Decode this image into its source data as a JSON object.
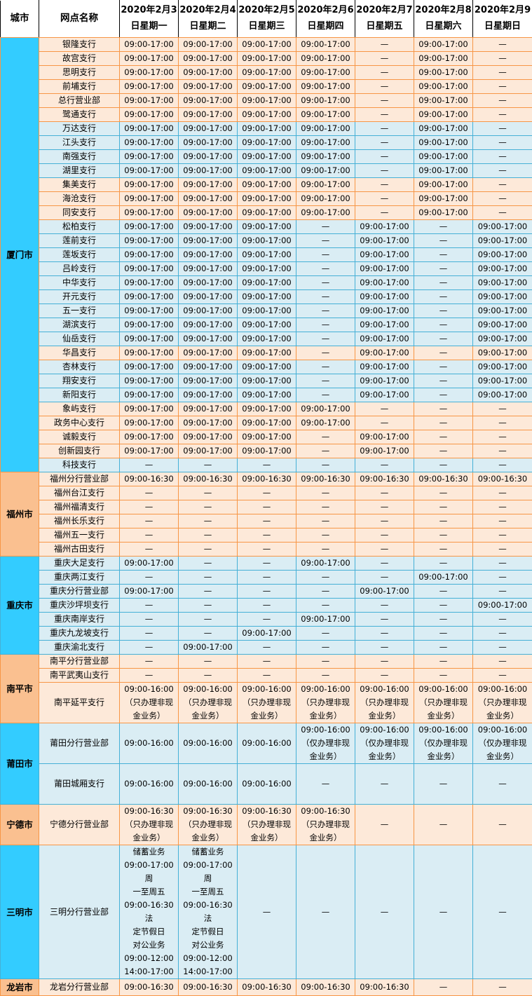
{
  "colors": {
    "city_cyan": "#33CCFF",
    "city_orange": "#FAC090",
    "row_peach": "#FDE9D9",
    "row_blue": "#DAEDF4",
    "border_orange": "#F79646",
    "border_teal": "#45B0D6",
    "header_bg": "#FFFFFF",
    "header_border": "#000000",
    "text": "#000000"
  },
  "header": {
    "city": "城市",
    "branch": "网点名称",
    "dates": [
      {
        "line1": "2020年2月3",
        "line2": "日星期一"
      },
      {
        "line1": "2020年2月4",
        "line2": "日星期二"
      },
      {
        "line1": "2020年2月5",
        "line2": "日星期三"
      },
      {
        "line1": "2020年2月6",
        "line2": "日星期四"
      },
      {
        "line1": "2020年2月7",
        "line2": "日星期五"
      },
      {
        "line1": "2020年2月8",
        "line2": "日星期六"
      },
      {
        "line1": "2020年2月9",
        "line2": "日星期日"
      }
    ]
  },
  "city_groups": [
    {
      "city": "厦门市",
      "city_color": "cyan",
      "rows": [
        {
          "branch": "银隆支行",
          "bg": "peach",
          "cells": [
            "09:00-17:00",
            "09:00-17:00",
            "09:00-17:00",
            "09:00-17:00",
            "—",
            "09:00-17:00",
            "—"
          ]
        },
        {
          "branch": "故宫支行",
          "bg": "peach",
          "cells": [
            "09:00-17:00",
            "09:00-17:00",
            "09:00-17:00",
            "09:00-17:00",
            "—",
            "09:00-17:00",
            "—"
          ]
        },
        {
          "branch": "思明支行",
          "bg": "peach",
          "cells": [
            "09:00-17:00",
            "09:00-17:00",
            "09:00-17:00",
            "09:00-17:00",
            "—",
            "09:00-17:00",
            "—"
          ]
        },
        {
          "branch": "前埔支行",
          "bg": "peach",
          "cells": [
            "09:00-17:00",
            "09:00-17:00",
            "09:00-17:00",
            "09:00-17:00",
            "—",
            "09:00-17:00",
            "—"
          ]
        },
        {
          "branch": "总行营业部",
          "bg": "peach",
          "cells": [
            "09:00-17:00",
            "09:00-17:00",
            "09:00-17:00",
            "09:00-17:00",
            "—",
            "09:00-17:00",
            "—"
          ]
        },
        {
          "branch": "鹭通支行",
          "bg": "peach",
          "cells": [
            "09:00-17:00",
            "09:00-17:00",
            "09:00-17:00",
            "09:00-17:00",
            "—",
            "09:00-17:00",
            "—"
          ]
        },
        {
          "branch": "万达支行",
          "bg": "blue",
          "cells": [
            "09:00-17:00",
            "09:00-17:00",
            "09:00-17:00",
            "09:00-17:00",
            "—",
            "09:00-17:00",
            "—"
          ]
        },
        {
          "branch": "江头支行",
          "bg": "blue",
          "cells": [
            "09:00-17:00",
            "09:00-17:00",
            "09:00-17:00",
            "09:00-17:00",
            "—",
            "09:00-17:00",
            "—"
          ]
        },
        {
          "branch": "南强支行",
          "bg": "blue",
          "cells": [
            "09:00-17:00",
            "09:00-17:00",
            "09:00-17:00",
            "09:00-17:00",
            "—",
            "09:00-17:00",
            "—"
          ]
        },
        {
          "branch": "湖里支行",
          "bg": "blue",
          "cells": [
            "09:00-17:00",
            "09:00-17:00",
            "09:00-17:00",
            "09:00-17:00",
            "—",
            "09:00-17:00",
            "—"
          ]
        },
        {
          "branch": "集美支行",
          "bg": "peach",
          "cells": [
            "09:00-17:00",
            "09:00-17:00",
            "09:00-17:00",
            "09:00-17:00",
            "—",
            "09:00-17:00",
            "—"
          ]
        },
        {
          "branch": "海沧支行",
          "bg": "peach",
          "cells": [
            "09:00-17:00",
            "09:00-17:00",
            "09:00-17:00",
            "09:00-17:00",
            "—",
            "09:00-17:00",
            "—"
          ]
        },
        {
          "branch": "同安支行",
          "bg": "peach",
          "cells": [
            "09:00-17:00",
            "09:00-17:00",
            "09:00-17:00",
            "09:00-17:00",
            "—",
            "09:00-17:00",
            "—"
          ]
        },
        {
          "branch": "松柏支行",
          "bg": "blue",
          "cells": [
            "09:00-17:00",
            "09:00-17:00",
            "09:00-17:00",
            "—",
            "09:00-17:00",
            "—",
            "09:00-17:00"
          ]
        },
        {
          "branch": "莲前支行",
          "bg": "blue",
          "cells": [
            "09:00-17:00",
            "09:00-17:00",
            "09:00-17:00",
            "—",
            "09:00-17:00",
            "—",
            "09:00-17:00"
          ]
        },
        {
          "branch": "莲坂支行",
          "bg": "blue",
          "cells": [
            "09:00-17:00",
            "09:00-17:00",
            "09:00-17:00",
            "—",
            "09:00-17:00",
            "—",
            "09:00-17:00"
          ]
        },
        {
          "branch": "吕岭支行",
          "bg": "blue",
          "cells": [
            "09:00-17:00",
            "09:00-17:00",
            "09:00-17:00",
            "—",
            "09:00-17:00",
            "—",
            "09:00-17:00"
          ]
        },
        {
          "branch": "中华支行",
          "bg": "blue",
          "cells": [
            "09:00-17:00",
            "09:00-17:00",
            "09:00-17:00",
            "—",
            "09:00-17:00",
            "—",
            "09:00-17:00"
          ]
        },
        {
          "branch": "开元支行",
          "bg": "blue",
          "cells": [
            "09:00-17:00",
            "09:00-17:00",
            "09:00-17:00",
            "—",
            "09:00-17:00",
            "—",
            "09:00-17:00"
          ]
        },
        {
          "branch": "五一支行",
          "bg": "blue",
          "cells": [
            "09:00-17:00",
            "09:00-17:00",
            "09:00-17:00",
            "—",
            "09:00-17:00",
            "—",
            "09:00-17:00"
          ]
        },
        {
          "branch": "湖滨支行",
          "bg": "blue",
          "cells": [
            "09:00-17:00",
            "09:00-17:00",
            "09:00-17:00",
            "—",
            "09:00-17:00",
            "—",
            "09:00-17:00"
          ]
        },
        {
          "branch": "仙岳支行",
          "bg": "blue",
          "cells": [
            "09:00-17:00",
            "09:00-17:00",
            "09:00-17:00",
            "—",
            "09:00-17:00",
            "—",
            "09:00-17:00"
          ]
        },
        {
          "branch": "华昌支行",
          "bg": "peach",
          "cells": [
            "09:00-17:00",
            "09:00-17:00",
            "09:00-17:00",
            "—",
            "09:00-17:00",
            "—",
            "09:00-17:00"
          ]
        },
        {
          "branch": "杏林支行",
          "bg": "blue",
          "cells": [
            "09:00-17:00",
            "09:00-17:00",
            "09:00-17:00",
            "—",
            "09:00-17:00",
            "—",
            "09:00-17:00"
          ]
        },
        {
          "branch": "翔安支行",
          "bg": "blue",
          "cells": [
            "09:00-17:00",
            "09:00-17:00",
            "09:00-17:00",
            "—",
            "09:00-17:00",
            "—",
            "09:00-17:00"
          ]
        },
        {
          "branch": "新阳支行",
          "bg": "blue",
          "cells": [
            "09:00-17:00",
            "09:00-17:00",
            "09:00-17:00",
            "—",
            "09:00-17:00",
            "—",
            "09:00-17:00"
          ]
        },
        {
          "branch": "象屿支行",
          "bg": "peach",
          "cells": [
            "09:00-17:00",
            "09:00-17:00",
            "09:00-17:00",
            "09:00-17:00",
            "—",
            "—",
            "—"
          ]
        },
        {
          "branch": "政务中心支行",
          "bg": "peach",
          "cells": [
            "09:00-17:00",
            "09:00-17:00",
            "09:00-17:00",
            "09:00-17:00",
            "—",
            "—",
            "—"
          ]
        },
        {
          "branch": "诚毅支行",
          "bg": "peach",
          "cells": [
            "09:00-17:00",
            "09:00-17:00",
            "09:00-17:00",
            "—",
            "09:00-17:00",
            "—",
            "—"
          ]
        },
        {
          "branch": "创新园支行",
          "bg": "peach",
          "cells": [
            "09:00-17:00",
            "09:00-17:00",
            "09:00-17:00",
            "—",
            "09:00-17:00",
            "—",
            "—"
          ]
        },
        {
          "branch": "科技支行",
          "bg": "blue",
          "cells": [
            "—",
            "—",
            "—",
            "—",
            "—",
            "—",
            "—"
          ]
        }
      ]
    },
    {
      "city": "福州市",
      "city_color": "orange",
      "rows": [
        {
          "branch": "福州分行营业部",
          "bg": "peach",
          "cells": [
            "09:00-16:30",
            "09:00-16:30",
            "09:00-16:30",
            "09:00-16:30",
            "09:00-16:30",
            "09:00-16:30",
            "09:00-16:30"
          ]
        },
        {
          "branch": "福州台江支行",
          "bg": "peach",
          "cells": [
            "—",
            "—",
            "—",
            "—",
            "—",
            "—",
            "—"
          ]
        },
        {
          "branch": "福州福清支行",
          "bg": "peach",
          "cells": [
            "—",
            "—",
            "—",
            "—",
            "—",
            "—",
            "—"
          ]
        },
        {
          "branch": "福州长乐支行",
          "bg": "peach",
          "cells": [
            "—",
            "—",
            "—",
            "—",
            "—",
            "—",
            "—"
          ]
        },
        {
          "branch": "福州五一支行",
          "bg": "peach",
          "cells": [
            "—",
            "—",
            "—",
            "—",
            "—",
            "—",
            "—"
          ]
        },
        {
          "branch": "福州古田支行",
          "bg": "peach",
          "cells": [
            "—",
            "—",
            "—",
            "—",
            "—",
            "—",
            "—"
          ]
        }
      ]
    },
    {
      "city": "重庆市",
      "city_color": "cyan",
      "rows": [
        {
          "branch": "重庆大足支行",
          "bg": "blue",
          "cells": [
            "09:00-17:00",
            "—",
            "—",
            "09:00-17:00",
            "—",
            "—",
            "—"
          ]
        },
        {
          "branch": "重庆两江支行",
          "bg": "blue",
          "cells": [
            "—",
            "—",
            "—",
            "—",
            "—",
            "09:00-17:00",
            "—"
          ]
        },
        {
          "branch": "重庆分行营业部",
          "bg": "blue",
          "cells": [
            "09:00-17:00",
            "—",
            "—",
            "—",
            "09:00-17:00",
            "—",
            "—"
          ]
        },
        {
          "branch": "重庆沙坪坝支行",
          "bg": "blue",
          "cells": [
            "—",
            "—",
            "—",
            "—",
            "—",
            "—",
            "09:00-17:00"
          ]
        },
        {
          "branch": "重庆南岸支行",
          "bg": "blue",
          "cells": [
            "—",
            "—",
            "—",
            "09:00-17:00",
            "—",
            "—",
            "—"
          ]
        },
        {
          "branch": "重庆九龙坡支行",
          "bg": "blue",
          "cells": [
            "—",
            "—",
            "09:00-17:00",
            "—",
            "—",
            "—",
            "—"
          ]
        },
        {
          "branch": "重庆渝北支行",
          "bg": "blue",
          "cells": [
            "—",
            "09:00-17:00",
            "—",
            "—",
            "—",
            "—",
            "—"
          ]
        }
      ]
    },
    {
      "city": "南平市",
      "city_color": "orange",
      "rows": [
        {
          "branch": "南平分行营业部",
          "bg": "peach",
          "cells": [
            "—",
            "—",
            "—",
            "—",
            "—",
            "—",
            "—"
          ]
        },
        {
          "branch": "南平武夷山支行",
          "bg": "peach",
          "cells": [
            "—",
            "—",
            "—",
            "—",
            "—",
            "—",
            "—"
          ]
        },
        {
          "branch": "南平延平支行",
          "bg": "peach",
          "cells": [
            "09:00-16:00\n（只办理非现\n金业务）",
            "09:00-16:00\n（只办理非现\n金业务）",
            "09:00-16:00\n（只办理非现\n金业务）",
            "09:00-16:00\n（只办理非现\n金业务）",
            "09:00-16:00\n（只办理非现\n金业务）",
            "09:00-16:00\n（只办理非现\n金业务）",
            "09:00-16:00\n（只办理非现\n金业务）"
          ]
        }
      ]
    },
    {
      "city": "莆田市",
      "city_color": "cyan",
      "rows": [
        {
          "branch": "莆田分行营业部",
          "bg": "blue",
          "cells": [
            "09:00-16:00",
            "09:00-16:00",
            "09:00-16:00",
            "09:00-16:00\n（仅办理非现\n金业务）",
            "09:00-16:00\n（仅办理非现\n金业务）",
            "09:00-16:00\n（仅办理非现\n金业务）",
            "09:00-16:00\n（仅办理非现\n金业务）"
          ]
        },
        {
          "branch": "莆田城厢支行",
          "bg": "blue",
          "cells": [
            "09:00-16:00",
            "09:00-16:00",
            "09:00-16:00",
            "—",
            "—",
            "—",
            "—"
          ]
        }
      ]
    },
    {
      "city": "宁德市",
      "city_color": "orange",
      "rows": [
        {
          "branch": "宁德分行营业部",
          "bg": "peach",
          "cells": [
            "09:00-16:30\n（只办理非现\n金业务）",
            "09:00-16:30\n（只办理非现\n金业务）",
            "09:00-16:30\n（只办理非现\n金业务）",
            "09:00-16:30\n（只办理非现\n金业务）",
            "—",
            "—",
            "—"
          ]
        }
      ]
    },
    {
      "city": "三明市",
      "city_color": "cyan",
      "rows": [
        {
          "branch": "三明分行营业部",
          "bg": "blue",
          "cells": [
            "储蓄业务\n09:00-17:00周\n一至周五\n09:00-16:30法\n定节假日\n对公业务\n09:00-12:00\n14:00-17:00",
            "储蓄业务\n09:00-17:00周\n一至周五\n09:00-16:30法\n定节假日\n对公业务\n09:00-12:00\n14:00-17:00",
            "—",
            "—",
            "—",
            "—",
            "—"
          ]
        }
      ]
    },
    {
      "city": "龙岩市",
      "city_color": "orange",
      "rows": [
        {
          "branch": "龙岩分行营业部",
          "bg": "peach",
          "cells": [
            "09:00-16:30",
            "09:00-16:30",
            "09:00-16:30",
            "09:00-16:30",
            "09:00-16:30",
            "—",
            "—"
          ]
        }
      ]
    }
  ]
}
